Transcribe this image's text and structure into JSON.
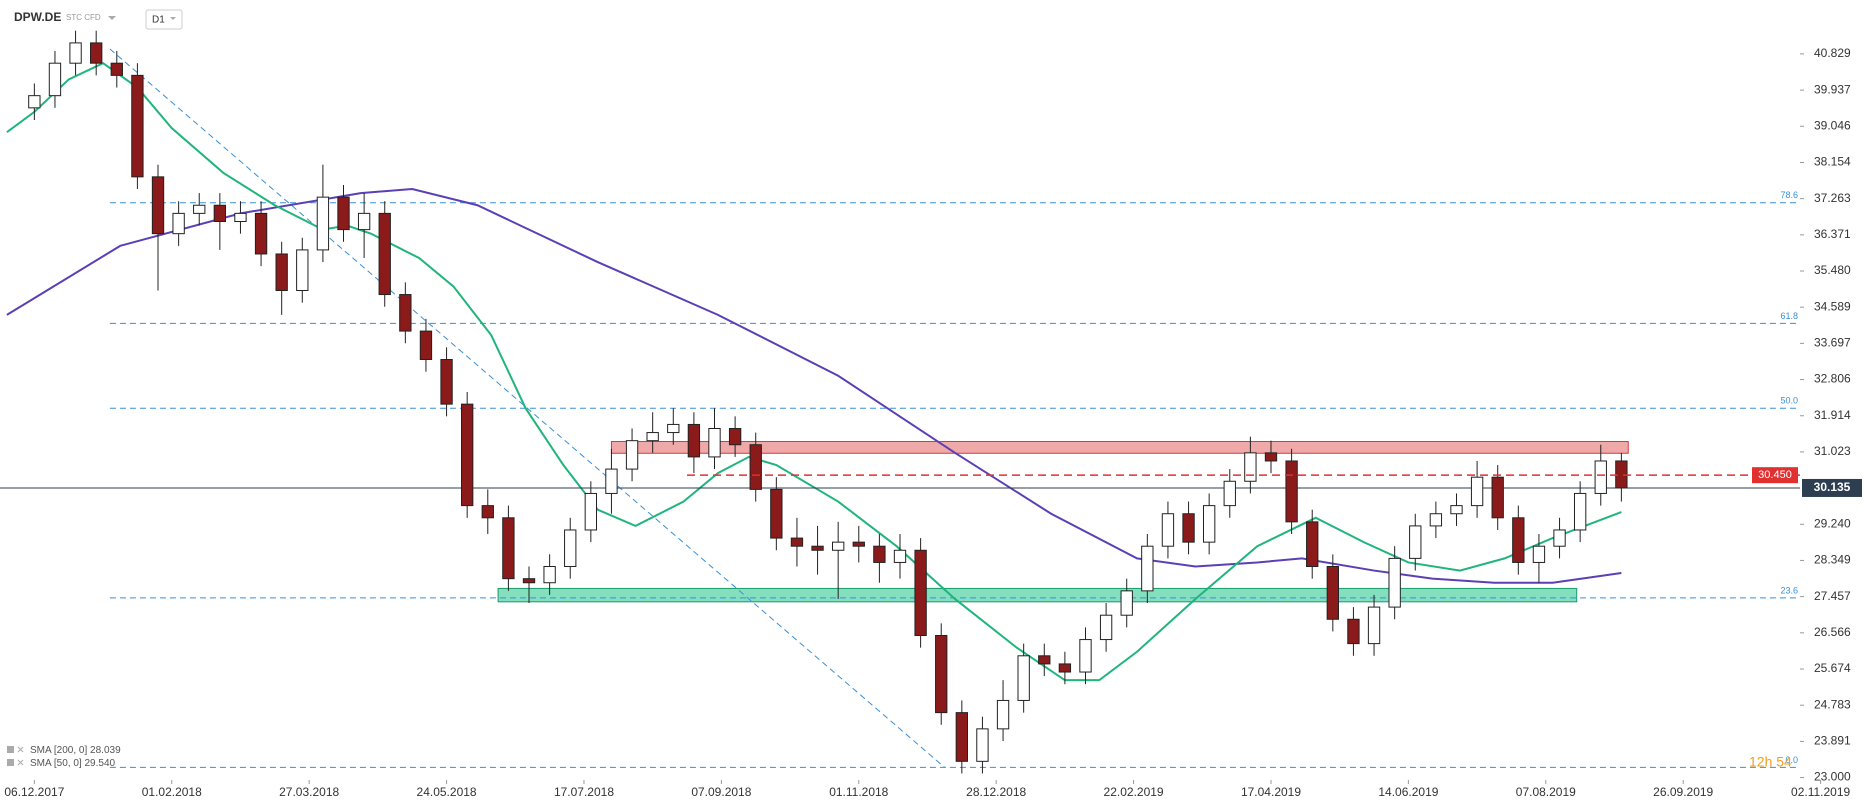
{
  "header": {
    "symbol": "DPW.DE",
    "instrument": "STC CFD",
    "interval": "D1"
  },
  "timer": "12h 54",
  "chart_data": {
    "type": "candlestick",
    "xlim": [
      -10,
      514
    ],
    "ylim": [
      22.94,
      41.27
    ],
    "grid": false,
    "up_color": "#ffffff",
    "down_color": "#8b1a1a",
    "outline_color": "#222222",
    "xticks": [
      {
        "value": 0,
        "label": "06.12.2017"
      },
      {
        "value": 40,
        "label": "01.02.2018"
      },
      {
        "value": 80,
        "label": "27.03.2018"
      },
      {
        "value": 120,
        "label": "24.05.2018"
      },
      {
        "value": 160,
        "label": "17.07.2018"
      },
      {
        "value": 200,
        "label": "07.09.2018"
      },
      {
        "value": 240,
        "label": "01.11.2018"
      },
      {
        "value": 280,
        "label": "28.12.2018"
      },
      {
        "value": 320,
        "label": "22.02.2019"
      },
      {
        "value": 360,
        "label": "17.04.2019"
      },
      {
        "value": 400,
        "label": "14.06.2019"
      },
      {
        "value": 440,
        "label": "07.08.2019"
      },
      {
        "value": 480,
        "label": "26.09.2019"
      },
      {
        "value": 520,
        "label": "02.11.2019"
      }
    ],
    "yticks": [
      40.829,
      39.937,
      39.046,
      38.154,
      37.263,
      36.371,
      {
        "value": 35.48,
        "label": "35.480"
      },
      34.589,
      33.697,
      32.806,
      31.914,
      31.023,
      {
        "value": 29.24,
        "label": "29.240"
      },
      28.349,
      27.457,
      26.566,
      25.674,
      24.783,
      23.891,
      {
        "value": 23,
        "label": "23.000"
      }
    ],
    "x": [
      0,
      6,
      12,
      18,
      24,
      30,
      36,
      42,
      48,
      54,
      60,
      66,
      72,
      78,
      84,
      90,
      96,
      102,
      108,
      114,
      120,
      126,
      132,
      138,
      144,
      150,
      156,
      162,
      168,
      174,
      180,
      186,
      192,
      198,
      204,
      210,
      216,
      222,
      228,
      234,
      240,
      246,
      252,
      258,
      264,
      270,
      276,
      282,
      288,
      294,
      300,
      306,
      312,
      318,
      324,
      330,
      336,
      342,
      348,
      354,
      360,
      366,
      372,
      378,
      384,
      390,
      396,
      402,
      408,
      414,
      420,
      426,
      432,
      438,
      444,
      450,
      456,
      462
    ],
    "open": [
      39.5,
      39.8,
      40.6,
      41.1,
      40.6,
      40.3,
      37.8,
      36.4,
      36.9,
      37.1,
      36.7,
      36.9,
      35.9,
      35.0,
      36.0,
      37.3,
      36.5,
      36.9,
      34.9,
      34.0,
      33.3,
      32.2,
      29.7,
      29.4,
      27.9,
      27.8,
      28.2,
      29.1,
      30.0,
      30.6,
      31.3,
      31.5,
      31.7,
      30.9,
      31.6,
      31.2,
      30.1,
      28.9,
      28.7,
      28.6,
      28.8,
      28.7,
      28.3,
      28.6,
      26.5,
      24.6,
      23.4,
      24.2,
      24.9,
      26.0,
      25.8,
      25.6,
      26.4,
      27.0,
      27.6,
      28.7,
      29.5,
      28.8,
      29.7,
      30.3,
      31.0,
      30.8,
      29.3,
      28.2,
      26.9,
      26.3,
      27.2,
      28.4,
      29.2,
      29.5,
      29.7,
      30.4,
      29.4,
      28.3,
      28.7,
      29.1,
      30.0,
      30.8
    ],
    "high": [
      40.1,
      40.9,
      41.4,
      41.4,
      40.9,
      40.6,
      38.1,
      37.2,
      37.4,
      37.4,
      37.2,
      37.2,
      36.2,
      36.3,
      38.1,
      37.6,
      37.4,
      37.2,
      35.2,
      34.3,
      33.6,
      32.5,
      30.1,
      29.7,
      28.2,
      28.5,
      29.4,
      30.3,
      31.1,
      31.6,
      32.0,
      32.1,
      32.0,
      32.1,
      31.9,
      31.5,
      30.4,
      29.4,
      29.2,
      29.3,
      29.2,
      29.0,
      29.0,
      28.9,
      26.8,
      24.9,
      24.5,
      25.4,
      26.3,
      26.3,
      26.1,
      26.7,
      27.3,
      27.9,
      29.0,
      29.8,
      29.8,
      30.0,
      30.6,
      31.4,
      31.3,
      31.1,
      29.6,
      28.5,
      27.2,
      27.5,
      28.7,
      29.5,
      29.8,
      30.0,
      30.8,
      30.7,
      29.7,
      29.0,
      29.4,
      30.3,
      31.2,
      31.0
    ],
    "low": [
      39.2,
      39.5,
      40.3,
      40.3,
      40.0,
      37.5,
      35.0,
      36.1,
      36.6,
      36.0,
      36.4,
      35.6,
      34.4,
      34.7,
      35.7,
      36.2,
      35.8,
      34.6,
      33.7,
      33.0,
      31.9,
      29.4,
      29.0,
      27.6,
      27.3,
      27.5,
      27.9,
      28.8,
      29.5,
      30.3,
      31.0,
      31.2,
      30.5,
      30.6,
      30.9,
      29.8,
      28.6,
      28.2,
      28.0,
      27.4,
      28.3,
      27.8,
      27.9,
      26.2,
      24.3,
      23.1,
      23.1,
      23.9,
      24.6,
      25.5,
      25.3,
      25.3,
      26.1,
      26.7,
      27.3,
      28.4,
      28.5,
      28.5,
      29.4,
      30.0,
      30.5,
      29.0,
      27.9,
      26.6,
      26.0,
      26.0,
      26.9,
      28.1,
      28.9,
      29.2,
      29.4,
      29.1,
      28.0,
      27.8,
      28.4,
      28.8,
      29.7,
      29.8
    ],
    "close": [
      39.8,
      40.6,
      41.1,
      40.6,
      40.3,
      37.8,
      36.4,
      36.9,
      37.1,
      36.7,
      36.9,
      35.9,
      35.0,
      36.0,
      37.3,
      36.5,
      36.9,
      34.9,
      34.0,
      33.3,
      32.2,
      29.7,
      29.4,
      27.9,
      27.8,
      28.2,
      29.1,
      30.0,
      30.6,
      31.3,
      31.5,
      31.7,
      30.9,
      31.6,
      31.2,
      30.1,
      28.9,
      28.7,
      28.6,
      28.8,
      28.7,
      28.3,
      28.6,
      26.5,
      24.6,
      23.4,
      24.2,
      24.9,
      26.0,
      25.8,
      25.6,
      26.4,
      27.0,
      27.6,
      28.7,
      29.5,
      28.8,
      29.7,
      30.3,
      31.0,
      30.8,
      29.3,
      28.2,
      26.9,
      26.3,
      27.2,
      28.4,
      29.2,
      29.5,
      29.7,
      30.4,
      29.4,
      28.3,
      28.7,
      29.1,
      30.0,
      30.8,
      30.135
    ],
    "current_color": "#2c3e50",
    "series": [
      {
        "name": "SMA [200, 0]",
        "color": "#5b3fb5",
        "last": 28.039,
        "x": [
          -8,
          25,
          60,
          95,
          110,
          129,
          164,
          199,
          234,
          268,
          296,
          321,
          338,
          356,
          369,
          390,
          407,
          425,
          442,
          462
        ],
        "values": [
          34.4,
          36.1,
          36.9,
          37.4,
          37.5,
          37.1,
          35.7,
          34.4,
          32.9,
          31.0,
          29.5,
          28.4,
          28.2,
          28.3,
          28.4,
          28.1,
          27.9,
          27.8,
          27.8,
          28.039
        ]
      },
      {
        "name": "SMA [50, 0]",
        "color": "#1fb57c",
        "last": {
          "value": 29.54,
          "label": "29.540"
        },
        "x": [
          -8,
          0,
          10,
          20,
          30,
          40,
          55,
          70,
          84,
          91,
          98,
          112,
          122,
          133,
          143,
          154,
          164,
          175,
          189,
          199,
          208,
          216,
          234,
          251,
          268,
          286,
          300,
          310,
          321,
          338,
          356,
          373,
          387,
          400,
          415,
          428,
          442,
          462
        ],
        "values": [
          38.9,
          39.4,
          40.2,
          40.6,
          40.0,
          39.0,
          37.9,
          37.1,
          36.5,
          36.6,
          36.4,
          35.8,
          35.1,
          33.9,
          32.1,
          30.7,
          29.6,
          29.2,
          29.8,
          30.5,
          30.9,
          30.7,
          29.8,
          28.7,
          27.4,
          26.2,
          25.4,
          25.4,
          26.1,
          27.4,
          28.7,
          29.4,
          28.8,
          28.3,
          28.1,
          28.4,
          28.9,
          29.54
        ]
      }
    ],
    "trendline": {
      "x": [
        22,
        265
      ],
      "values": [
        40.95,
        23.25
      ],
      "color": "#3a8fd8"
    },
    "fib": {
      "x_start": 22,
      "color": "#3a8fd8",
      "levels": [
        {
          "value": 37.162,
          "label": "78.6"
        },
        {
          "value": 34.189,
          "label": "61.8"
        },
        {
          "value": 32.1,
          "label": "50.0"
        },
        {
          "value": 27.427,
          "label": "23.6"
        },
        {
          "value": 23.25,
          "label": "0.0"
        }
      ]
    },
    "zones": [
      {
        "x": [
          168,
          464
        ],
        "range": [
          30.99,
          31.28
        ],
        "fill": "#ec9a9a",
        "stroke": "#d23b3b"
      },
      {
        "x": [
          135,
          449
        ],
        "range": [
          27.33,
          27.66
        ],
        "fill": "#6fd9b3",
        "stroke": "#1a9a6a"
      }
    ],
    "marker_line": {
      "x_start": 190,
      "level": {
        "value": 30.45,
        "label": "30.450"
      },
      "color": "#e03030"
    }
  }
}
